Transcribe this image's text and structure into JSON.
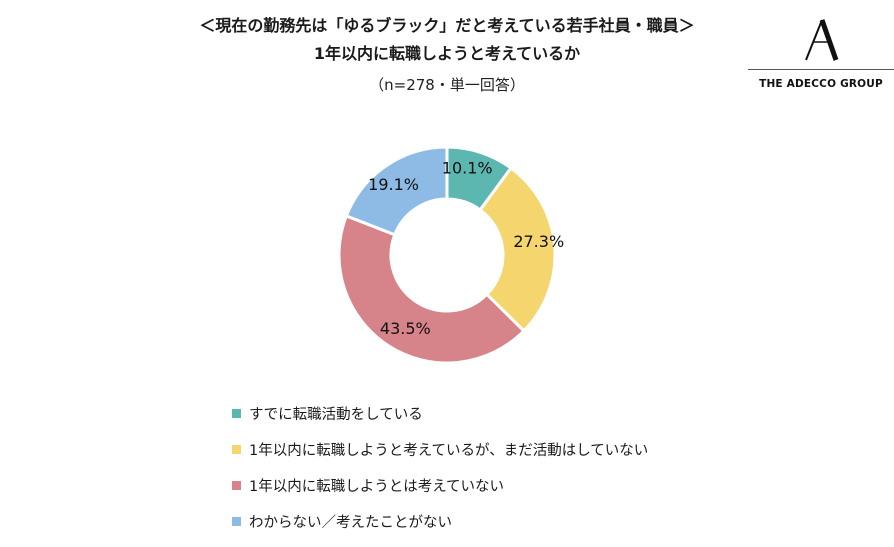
{
  "title_line1": "＜現在の勤務先は「ゆるブラック」だと考えている若手社員・職員＞",
  "title_line2": "1年以内に転職しようと考えているか",
  "subtitle": "（n=278・単一回答）",
  "logo_text": "THE ADECCO GROUP",
  "chart_data": {
    "type": "pie",
    "donut": true,
    "title": "1年以内に転職しようと考えているか",
    "subtitle": "（n=278・単一回答）",
    "start_angle_deg": 0,
    "direction": "clockwise",
    "legend_position": "bottom",
    "slices": [
      {
        "label": "すでに転職活動をしている",
        "value": 10.1,
        "display": "10.1%",
        "color": "#5cb7b0"
      },
      {
        "label": "1年以内に転職しようと考えているが、まだ活動はしていない",
        "value": 27.3,
        "display": "27.3%",
        "color": "#f4d56e"
      },
      {
        "label": "1年以内に転職しようとは考えていない",
        "value": 43.5,
        "display": "43.5%",
        "color": "#d7838a"
      },
      {
        "label": "わからない／考えたことがない",
        "value": 19.1,
        "display": "19.1%",
        "color": "#8dbbe5"
      }
    ]
  }
}
